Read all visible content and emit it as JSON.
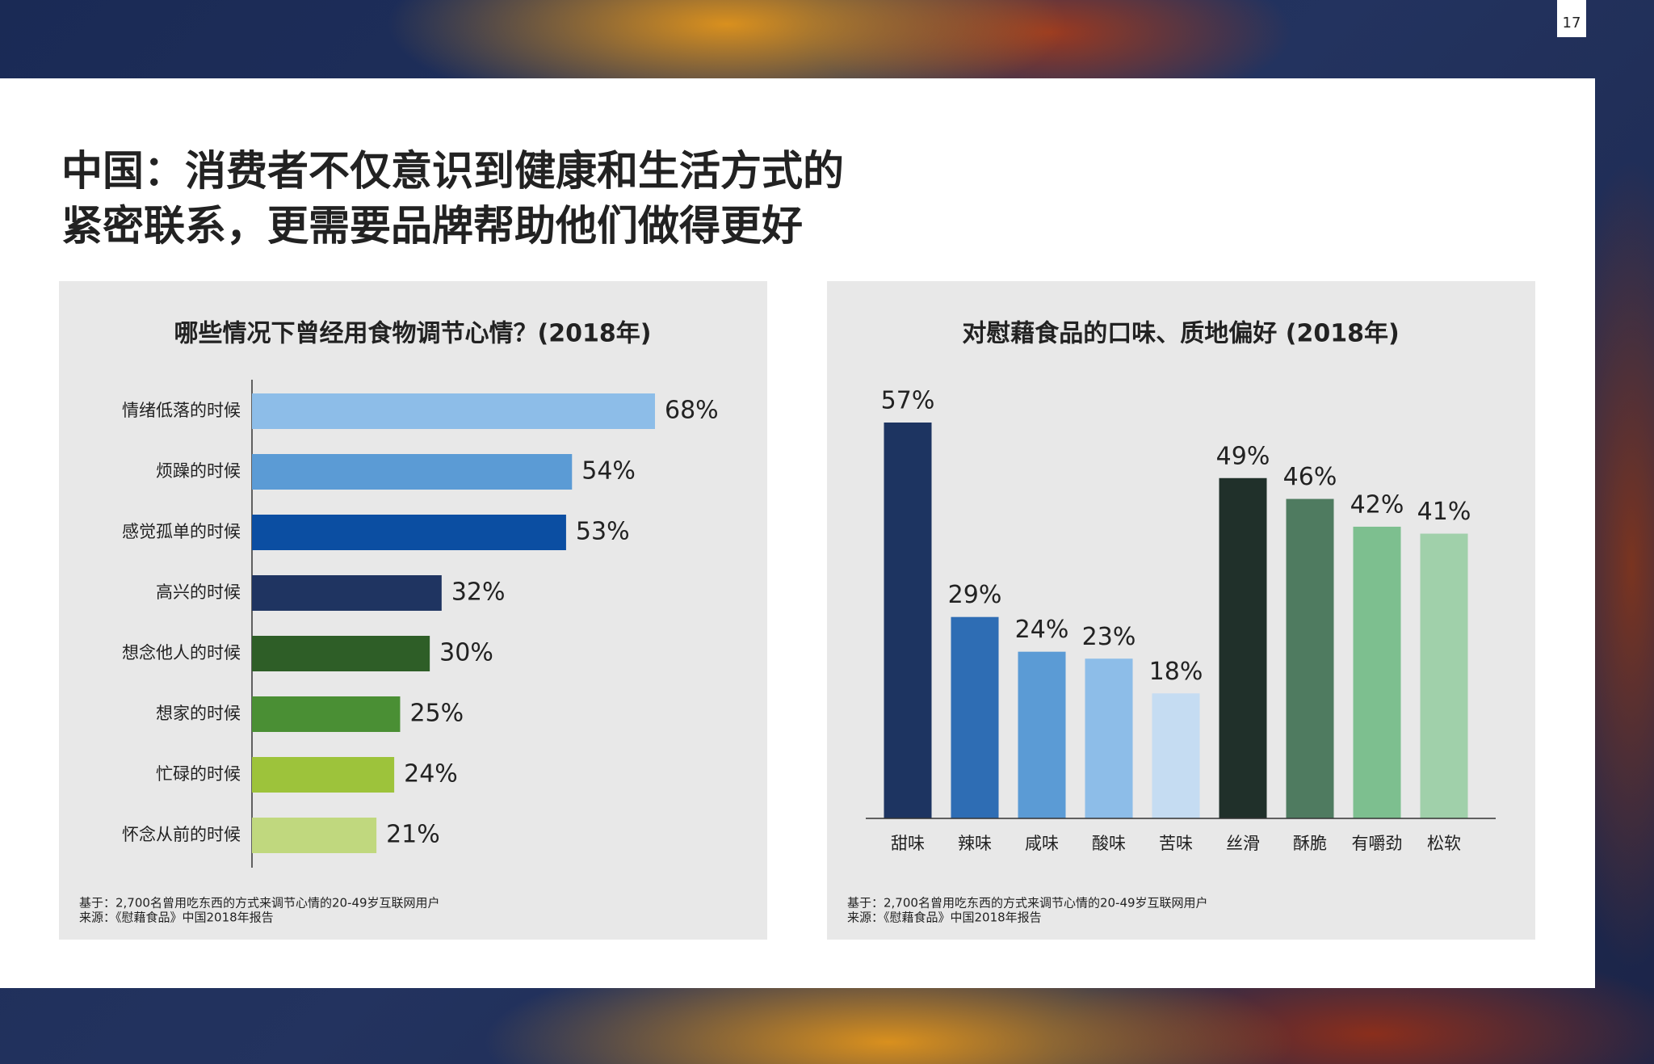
{
  "page_number": "17",
  "title": [
    "中国：消费者不仅意识到健康和生活方式的",
    "紧密联系，更需要品牌帮助他们做得更好"
  ],
  "chart_data": [
    {
      "type": "bar",
      "orientation": "horizontal",
      "title": "哪些情况下曾经用食物调节心情？(2018年)",
      "categories": [
        "情绪低落的时候",
        "烦躁的时候",
        "感觉孤单的时候",
        "高兴的时候",
        "想念他人的时候",
        "想家的时候",
        "忙碌的时候",
        "怀念从前的时候"
      ],
      "values": [
        68,
        54,
        53,
        32,
        30,
        25,
        24,
        21
      ],
      "value_labels": [
        "68%",
        "54%",
        "53%",
        "32%",
        "30%",
        "25%",
        "24%",
        "21%"
      ],
      "colors": [
        "#8dbde8",
        "#5b9bd5",
        "#0b4ea2",
        "#1f3461",
        "#2e5e27",
        "#4a8f34",
        "#9dc33b",
        "#c0d87e"
      ],
      "notes": [
        "基于：2,700名曾用吃东西的方式来调节心情的20-49岁互联网用户",
        "来源：《慰藉食品》中国2018年报告"
      ]
    },
    {
      "type": "bar",
      "orientation": "vertical",
      "title": "对慰藉食品的口味、质地偏好 (2018年)",
      "categories": [
        "甜味",
        "辣味",
        "咸味",
        "酸味",
        "苦味",
        "丝滑",
        "酥脆",
        "有嚼劲",
        "松软"
      ],
      "values": [
        57,
        29,
        24,
        23,
        18,
        49,
        46,
        42,
        41
      ],
      "value_labels": [
        "57%",
        "29%",
        "24%",
        "23%",
        "18%",
        "49%",
        "46%",
        "42%",
        "41%"
      ],
      "colors": [
        "#1d3461",
        "#2e6db4",
        "#5b9bd5",
        "#8dbde8",
        "#c5dcf2",
        "#20302a",
        "#4f7b60",
        "#7dbf8f",
        "#a0d0aa"
      ],
      "notes": [
        "基于：2,700名曾用吃东西的方式来调节心情的20-49岁互联网用户",
        "来源：《慰藉食品》中国2018年报告"
      ]
    }
  ]
}
